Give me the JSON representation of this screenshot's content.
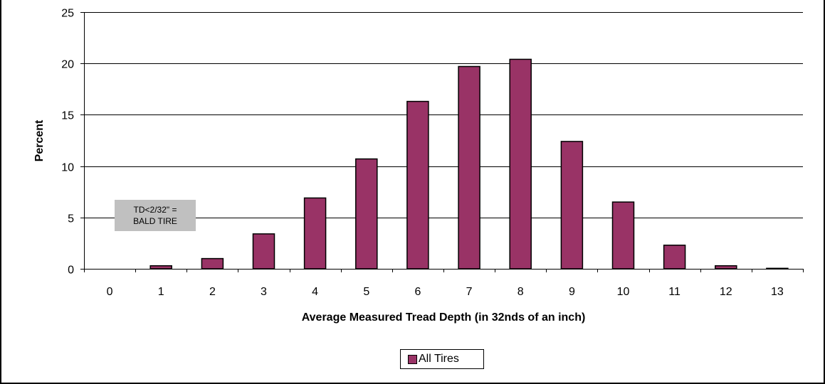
{
  "colors": {
    "bar": "#993366",
    "annotation_bg": "#c0c0c0"
  },
  "annotation": {
    "line1": "TD<2/32\" =",
    "line2": "BALD TIRE"
  },
  "legend": {
    "label": "All Tires"
  },
  "chart_data": {
    "type": "bar",
    "categories": [
      "0",
      "1",
      "2",
      "3",
      "4",
      "5",
      "6",
      "7",
      "8",
      "9",
      "10",
      "11",
      "12",
      "13"
    ],
    "series": [
      {
        "name": "All Tires",
        "values": [
          0,
          0.3,
          1.0,
          3.4,
          6.9,
          10.7,
          16.3,
          19.7,
          20.4,
          12.4,
          6.5,
          2.3,
          0.3,
          0.05
        ]
      }
    ],
    "title": "",
    "xlabel": "Average Measured Tread Depth (in 32nds of an inch)",
    "ylabel": "Percent",
    "ylim": [
      0,
      25
    ],
    "yticks": [
      0,
      5,
      10,
      15,
      20,
      25
    ],
    "grid": true,
    "legend_position": "bottom"
  }
}
